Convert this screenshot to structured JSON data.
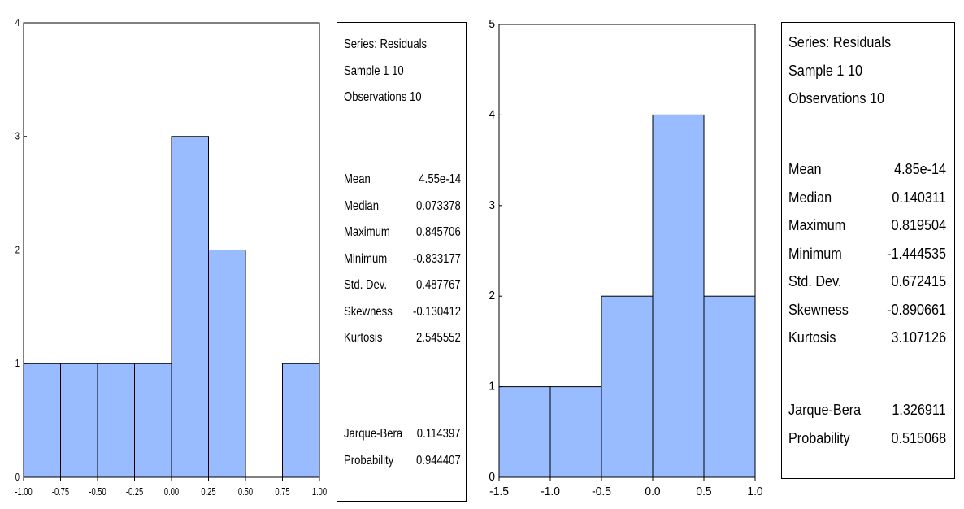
{
  "chart_data": [
    {
      "type": "bar",
      "bins": [
        {
          "from": -1.0,
          "to": -0.75,
          "count": 1
        },
        {
          "from": -0.75,
          "to": -0.5,
          "count": 1
        },
        {
          "from": -0.5,
          "to": -0.25,
          "count": 1
        },
        {
          "from": -0.25,
          "to": 0.0,
          "count": 1
        },
        {
          "from": 0.0,
          "to": 0.25,
          "count": 3
        },
        {
          "from": 0.25,
          "to": 0.5,
          "count": 2
        },
        {
          "from": 0.5,
          "to": 0.75,
          "count": 0
        },
        {
          "from": 0.75,
          "to": 1.0,
          "count": 1
        }
      ],
      "xlim": [
        -1.0,
        1.0
      ],
      "ylim": [
        0,
        4
      ],
      "x_ticks": [
        "-1.00",
        "-0.75",
        "-0.50",
        "-0.25",
        "0.00",
        "0.25",
        "0.50",
        "0.75",
        "1.00"
      ],
      "y_ticks": [
        "0",
        "1",
        "2",
        "3",
        "4"
      ],
      "bar_color": "#99bbff",
      "grid": false,
      "legend": "none"
    },
    {
      "type": "bar",
      "bins": [
        {
          "from": -1.5,
          "to": -1.0,
          "count": 1
        },
        {
          "from": -1.0,
          "to": -0.5,
          "count": 1
        },
        {
          "from": -0.5,
          "to": 0.0,
          "count": 2
        },
        {
          "from": 0.0,
          "to": 0.5,
          "count": 4
        },
        {
          "from": 0.5,
          "to": 1.0,
          "count": 2
        }
      ],
      "xlim": [
        -1.5,
        1.0
      ],
      "ylim": [
        0,
        5
      ],
      "x_ticks": [
        "-1.5",
        "-1.0",
        "-0.5",
        "0.0",
        "0.5",
        "1.0"
      ],
      "y_ticks": [
        "0",
        "1",
        "2",
        "3",
        "4",
        "5"
      ],
      "bar_color": "#99bbff",
      "grid": false,
      "legend": "none"
    }
  ],
  "stats": [
    {
      "header": [
        "Series: Residuals",
        "Sample 1 10",
        "Observations 10"
      ],
      "rows": [
        {
          "label": "Mean",
          "value": "4.55e-14"
        },
        {
          "label": "Median",
          "value": "0.073378"
        },
        {
          "label": "Maximum",
          "value": "0.845706"
        },
        {
          "label": "Minimum",
          "value": "-0.833177"
        },
        {
          "label": "Std. Dev.",
          "value": "0.487767"
        },
        {
          "label": "Skewness",
          "value": "-0.130412"
        },
        {
          "label": "Kurtosis",
          "value": "2.545552"
        }
      ],
      "tests": [
        {
          "label": "Jarque-Bera",
          "value": "0.114397"
        },
        {
          "label": "Probability",
          "value": "0.944407"
        }
      ]
    },
    {
      "header": [
        "Series: Residuals",
        "Sample 1 10",
        "Observations 10"
      ],
      "rows": [
        {
          "label": "Mean",
          "value": "4.85e-14"
        },
        {
          "label": "Median",
          "value": "0.140311"
        },
        {
          "label": "Maximum",
          "value": "0.819504"
        },
        {
          "label": "Minimum",
          "value": "-1.444535"
        },
        {
          "label": "Std. Dev.",
          "value": "0.672415"
        },
        {
          "label": "Skewness",
          "value": "-0.890661"
        },
        {
          "label": "Kurtosis",
          "value": "3.107126"
        }
      ],
      "tests": [
        {
          "label": "Jarque-Bera",
          "value": "1.326911"
        },
        {
          "label": "Probability",
          "value": "0.515068"
        }
      ]
    }
  ]
}
